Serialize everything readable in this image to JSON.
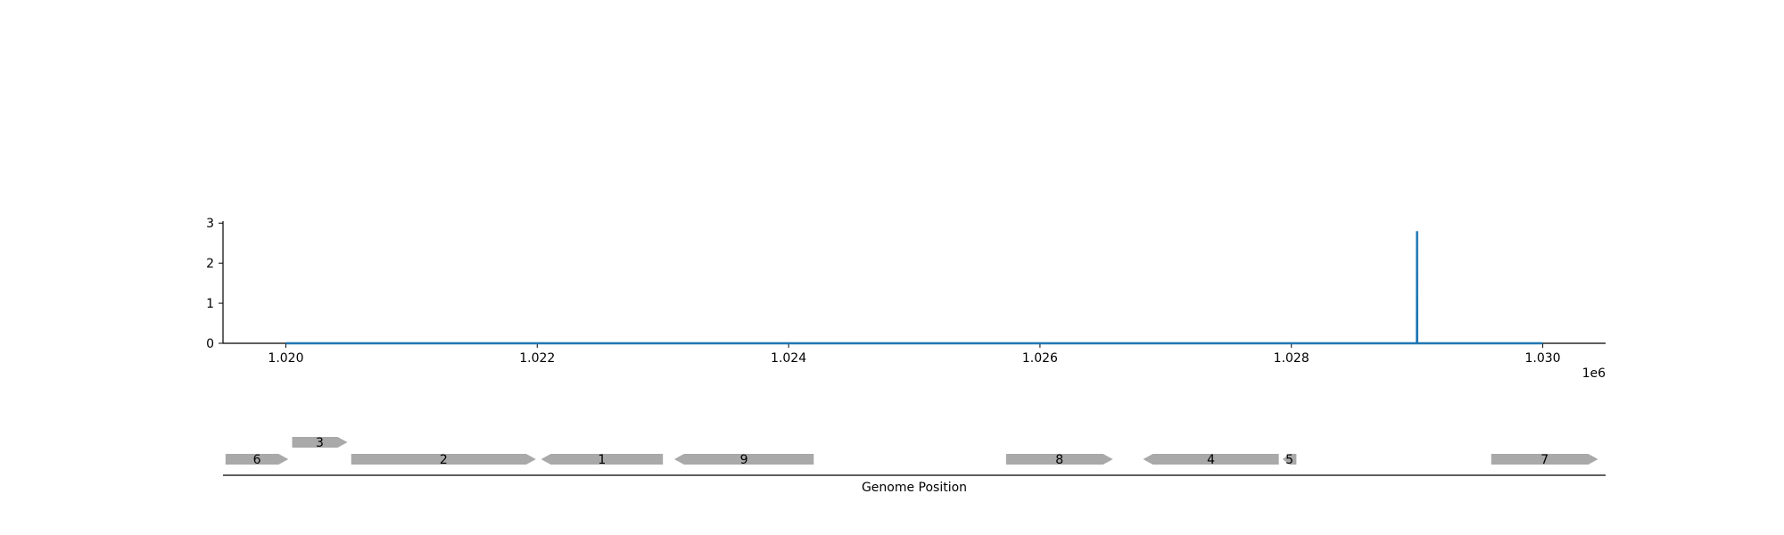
{
  "chart_data": [
    {
      "type": "line",
      "title": "",
      "xlabel": "",
      "ylabel": "",
      "x_offset_label": "1e6",
      "xlim": [
        1019500,
        1030500
      ],
      "ylim": [
        0,
        3.05
      ],
      "x_ticks": [
        1020000,
        1022000,
        1024000,
        1026000,
        1028000,
        1030000
      ],
      "x_tick_labels": [
        "1.020",
        "1.022",
        "1.024",
        "1.026",
        "1.028",
        "1.030"
      ],
      "y_ticks": [
        0,
        1,
        2,
        3
      ],
      "y_tick_labels": [
        "0",
        "1",
        "2",
        "3"
      ],
      "grid": false,
      "color": "#1f77b4",
      "series": [
        {
          "x": [
            1020000,
            1028999,
            1029000,
            1029001,
            1030000
          ],
          "y": [
            0,
            0,
            2.8,
            0,
            0
          ]
        }
      ]
    },
    {
      "type": "gene_track",
      "xlabel": "Genome Position",
      "xlim": [
        1019500,
        1030500
      ],
      "feature_color": "#a9a9a9",
      "genes": [
        {
          "label": "6",
          "start": 1019520,
          "end": 1020020,
          "strand": "+",
          "row": 0
        },
        {
          "label": "3",
          "start": 1020050,
          "end": 1020490,
          "strand": "+",
          "row": 1
        },
        {
          "label": "2",
          "start": 1020520,
          "end": 1021990,
          "strand": "+",
          "row": 0
        },
        {
          "label": "1",
          "start": 1022030,
          "end": 1023000,
          "strand": "-",
          "row": 0
        },
        {
          "label": "9",
          "start": 1023090,
          "end": 1024200,
          "strand": "-",
          "row": 0
        },
        {
          "label": "8",
          "start": 1025730,
          "end": 1026580,
          "strand": "+",
          "row": 0
        },
        {
          "label": "4",
          "start": 1026820,
          "end": 1027900,
          "strand": "-",
          "row": 0
        },
        {
          "label": "5",
          "start": 1027930,
          "end": 1028040,
          "strand": "-",
          "row": 0
        },
        {
          "label": "7",
          "start": 1029590,
          "end": 1030440,
          "strand": "+",
          "row": 0
        }
      ]
    }
  ]
}
